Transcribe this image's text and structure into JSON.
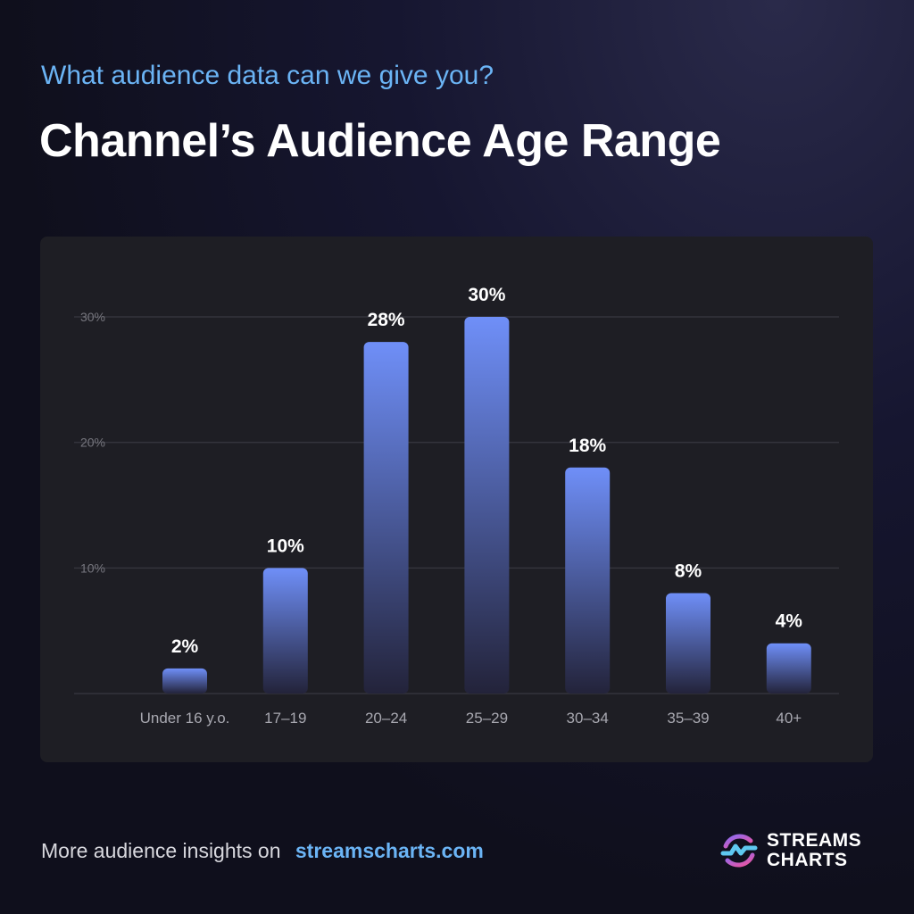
{
  "header": {
    "subtitle": "What audience data can we give you?",
    "title": "Channel’s Audience Age Range"
  },
  "footer": {
    "text": "More audience insights on",
    "link": "streamscharts.com"
  },
  "logo": {
    "line1": "STREAMS",
    "line2": "CHARTS"
  },
  "colors": {
    "bar_top": "#6f8ff8",
    "bar_bottom": "#23233a",
    "accent": "#6bb4f5",
    "card": "#1e1e24"
  },
  "chart_data": {
    "type": "bar",
    "categories": [
      "Under 16 y.o.",
      "17–19",
      "20–24",
      "25–29",
      "30–34",
      "35–39",
      "40+"
    ],
    "values": [
      2,
      10,
      28,
      30,
      18,
      8,
      4
    ],
    "data_labels": [
      "2%",
      "10%",
      "28%",
      "30%",
      "18%",
      "8%",
      "4%"
    ],
    "yticks": [
      {
        "value": 10,
        "label": "10%"
      },
      {
        "value": 20,
        "label": "20%"
      },
      {
        "value": 30,
        "label": "30%"
      }
    ],
    "ylim": [
      0,
      30
    ],
    "grid": true
  }
}
